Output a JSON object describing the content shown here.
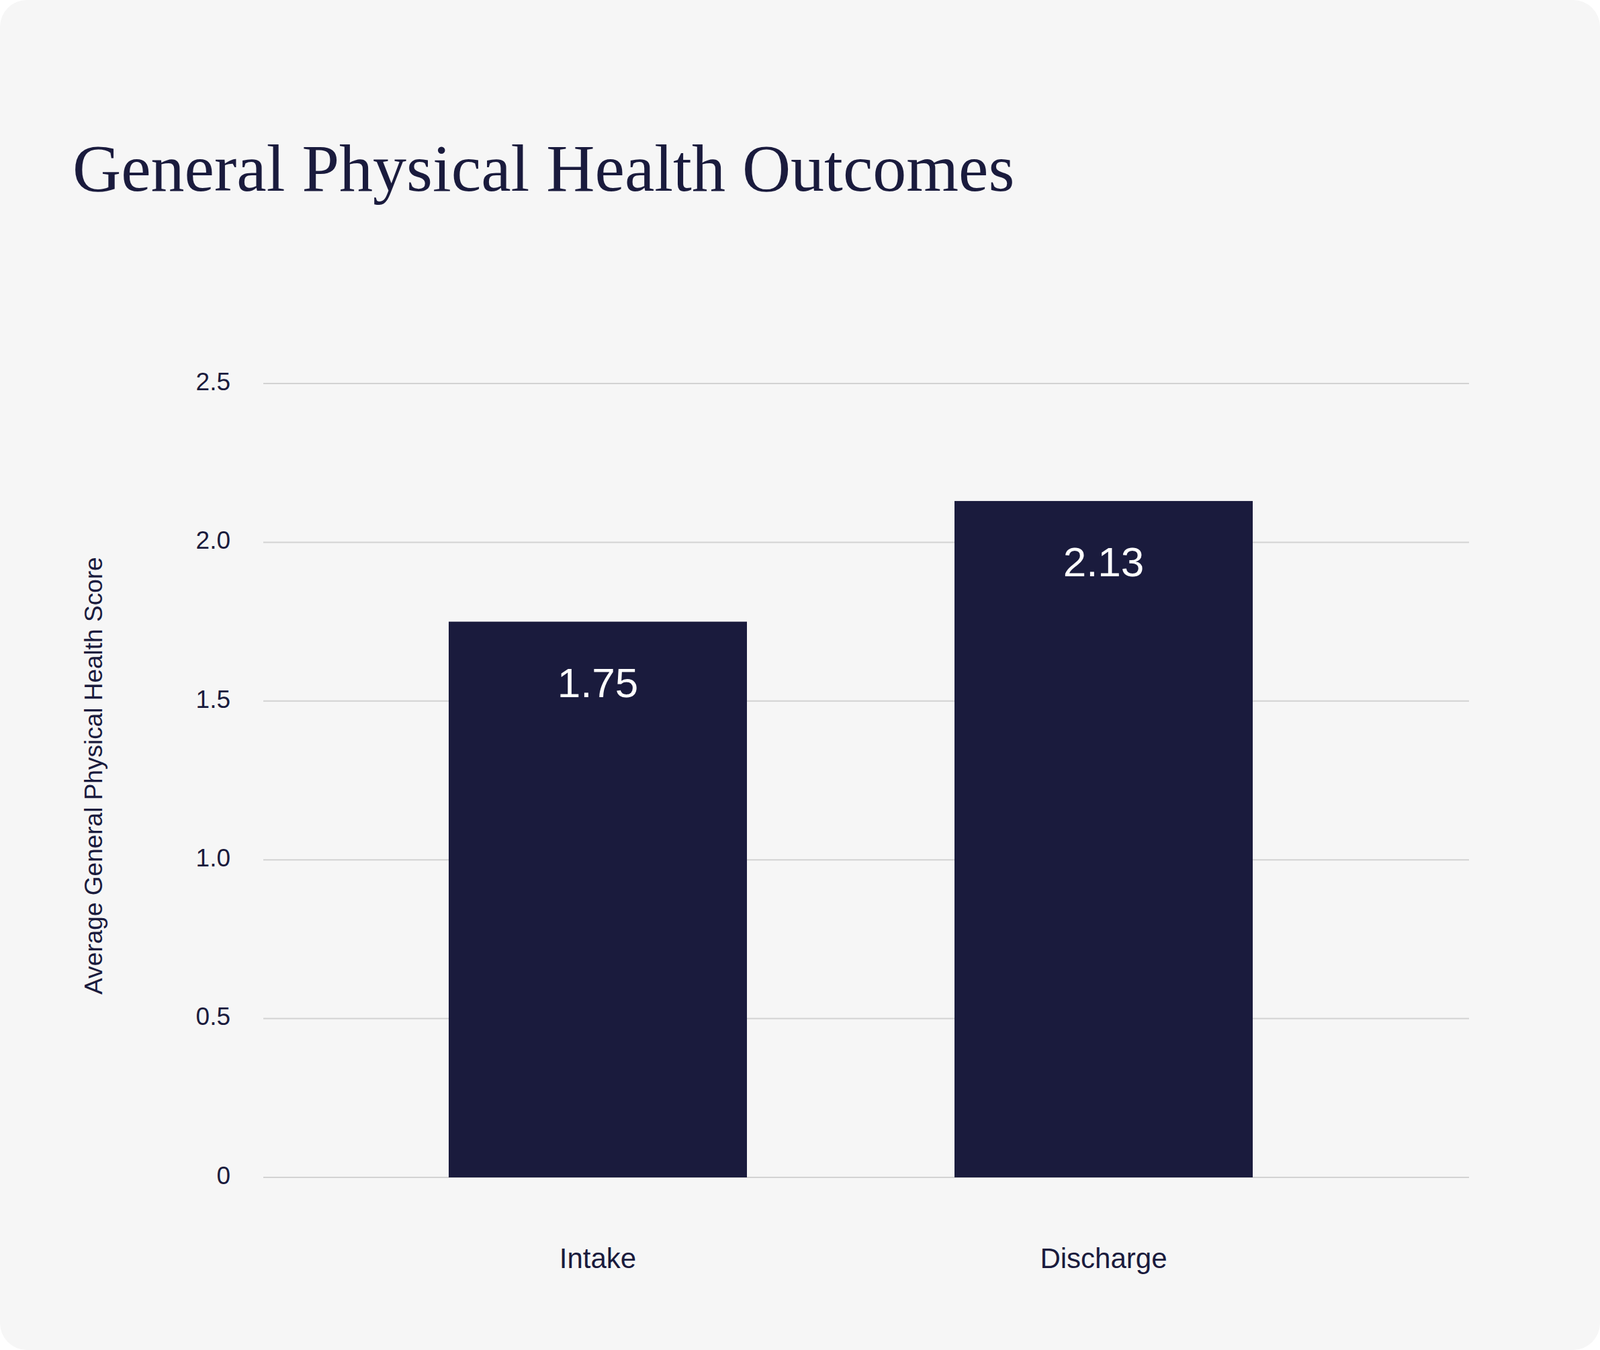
{
  "chart_data": {
    "type": "bar",
    "title": "General Physical Health Outcomes",
    "y_label": "Average General Physical Health Score",
    "categories": [
      "Intake",
      "Discharge"
    ],
    "values": [
      1.75,
      2.13
    ],
    "color": "#1a1b3d",
    "ylim": [
      0,
      2.5
    ],
    "yticks": [
      0,
      0.5,
      {
        "value": 1,
        "label": "1.0"
      },
      1.5,
      {
        "value": 2,
        "label": "2.0"
      },
      2.5
    ],
    "grid": true,
    "data_labels": true
  }
}
